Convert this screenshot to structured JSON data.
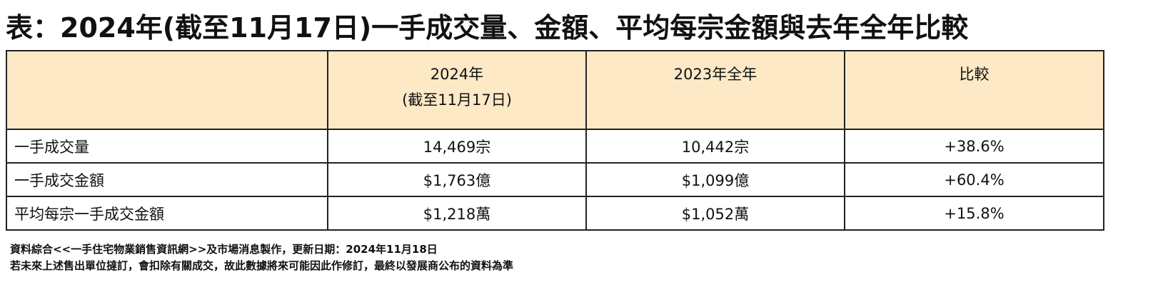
{
  "title": "表：2024年(截至11月17日)一手成交量、金額、平均每宗金額與去年全年比較",
  "table": {
    "headers": [
      [
        "2024年",
        "(截至11月17日)"
      ],
      [
        "2023年全年"
      ],
      [
        "比較"
      ]
    ],
    "rows": [
      [
        "一手成交量",
        "14,469宗",
        "10,442宗",
        "+38.6%"
      ],
      [
        "一手成交金額",
        "$1,763億",
        "$1,099億",
        "+60.4%"
      ],
      [
        "平均每宗一手成交金額",
        "$1,218萬",
        "$1,052萬",
        "+15.8%"
      ]
    ]
  },
  "notes": [
    "資料綜合<<一手住宅物業銷售資訊網>>及市場消息製作，更新日期：2024年11月18日",
    "若未來上述售出單位撻訂，會扣除有關成交，故此數據將來可能因此作修訂，最終以發展商公布的資料為準"
  ]
}
